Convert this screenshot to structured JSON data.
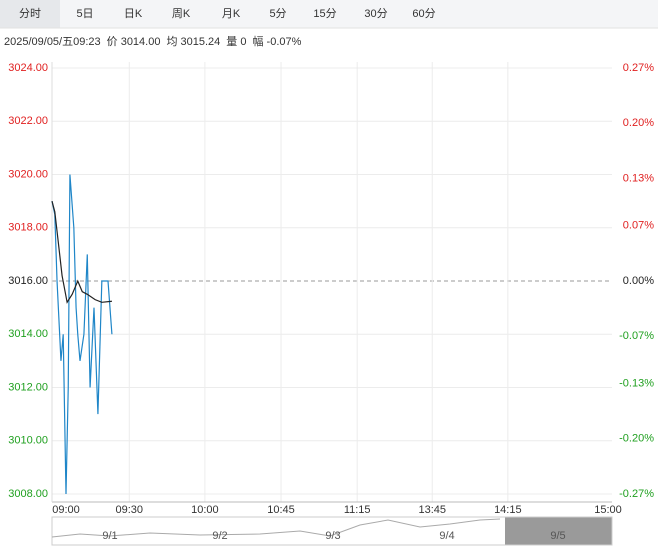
{
  "tabs": [
    "分时",
    "5日",
    "日K",
    "周K",
    "月K",
    "5分",
    "15分",
    "30分",
    "60分"
  ],
  "info": [
    "2025/09/05/五09:23",
    "价 3014.00",
    "均 3015.24",
    "量 0",
    "幅 -0.07%"
  ],
  "chart_data": {
    "type": "line",
    "baseline": 3016,
    "ylim": [
      3008,
      3024
    ],
    "yticks": [
      {
        "value": 3008,
        "label": "3008.00"
      },
      {
        "value": 3010,
        "label": "3010.00"
      },
      {
        "value": 3012,
        "label": "3012.00"
      },
      {
        "value": 3014,
        "label": "3014.00"
      },
      {
        "value": 3016,
        "label": "3016.00"
      },
      {
        "value": 3018,
        "label": "3018.00"
      },
      {
        "value": 3020,
        "label": "3020.00"
      },
      {
        "value": 3022,
        "label": "3022.00"
      },
      {
        "value": 3024,
        "label": "3024.00"
      }
    ],
    "y2lim": [
      -0.27,
      0.27
    ],
    "y2ticks": [
      {
        "value": -0.27,
        "label": "-0.27%"
      },
      {
        "value": -0.2,
        "label": "-0.20%"
      },
      {
        "value": -0.13,
        "label": "-0.13%"
      },
      {
        "value": -0.07,
        "label": "-0.07%"
      },
      {
        "value": 0,
        "label": "0.00%"
      },
      {
        "value": 0.07,
        "label": "0.07%"
      },
      {
        "value": 0.13,
        "label": "0.13%"
      },
      {
        "value": 0.2,
        "label": "0.20%"
      },
      {
        "value": 0.27,
        "label": "0.27%"
      }
    ],
    "xlim": [
      0,
      100
    ],
    "xticks": [
      {
        "value": 2.5,
        "label": "09:00"
      },
      {
        "value": 13.8,
        "label": "09:30"
      },
      {
        "value": 27.3,
        "label": "10:00"
      },
      {
        "value": 40.9,
        "label": "10:45"
      },
      {
        "value": 54.5,
        "label": "11:15"
      },
      {
        "value": 67.9,
        "label": "13:45"
      },
      {
        "value": 81.4,
        "label": "14:15"
      },
      {
        "value": 100,
        "label": "15:00"
      }
    ],
    "series": [
      {
        "name": "价",
        "color": "#1f86c8",
        "x": [
          0,
          0.5,
          0.9,
          1.6,
          2.0,
          2.5,
          2.9,
          3.2,
          3.9,
          4.3,
          4.6,
          5.0,
          5.7,
          6.3,
          6.8,
          7.5,
          8.2,
          8.9,
          9.3,
          10.0,
          10.7
        ],
        "values": [
          3019,
          3018.5,
          3016,
          3013,
          3014,
          3008,
          3012,
          3020,
          3018,
          3015,
          3014,
          3013,
          3014,
          3017,
          3012,
          3015,
          3011,
          3016,
          3016,
          3016,
          3014
        ]
      },
      {
        "name": "均",
        "color": "#222222",
        "x": [
          0,
          0.5,
          1.1,
          1.8,
          2.7,
          3.6,
          4.6,
          5.4,
          6.3,
          7.7,
          8.9,
          10.7
        ],
        "values": [
          3019,
          3018.6,
          3017.5,
          3016.2,
          3015.2,
          3015.5,
          3016,
          3015.6,
          3015.5,
          3015.3,
          3015.2,
          3015.24
        ]
      }
    ]
  },
  "navigator": [
    "9/1",
    "9/2",
    "9/3",
    "9/4",
    "9/5"
  ]
}
